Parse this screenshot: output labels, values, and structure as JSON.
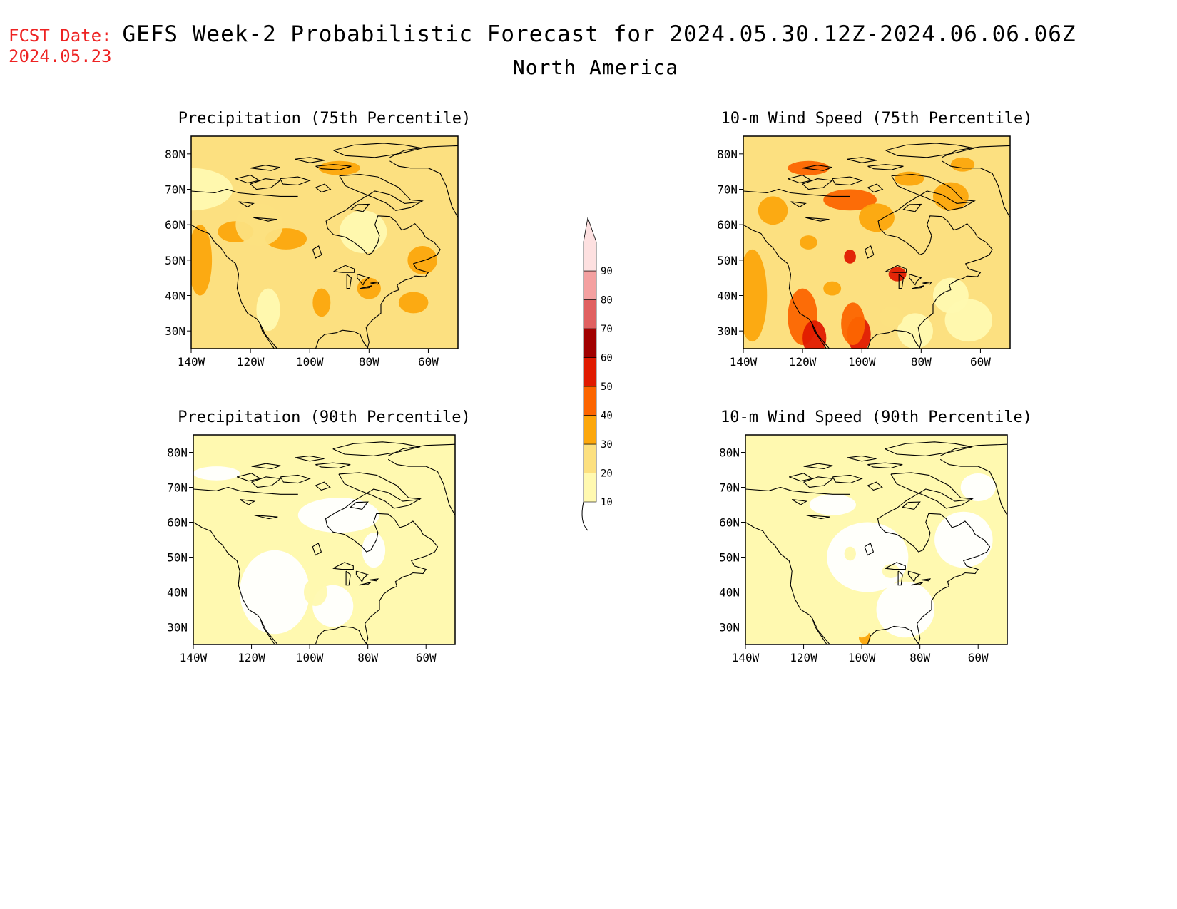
{
  "header": {
    "fcst_label": "FCST Date:",
    "fcst_date": "2024.05.23",
    "title": "GEFS Week-2 Probabilistic Forecast for 2024.05.30.12Z-2024.06.06.06Z",
    "region": "North America"
  },
  "axes": {
    "lon_ticks": [
      "140W",
      "120W",
      "100W",
      "80W",
      "60W"
    ],
    "lat_ticks": [
      "80N",
      "70N",
      "60N",
      "50N",
      "40N",
      "30N"
    ]
  },
  "panels": [
    {
      "title": "Precipitation (75th Percentile)",
      "level": 2
    },
    {
      "title": "10-m Wind Speed (75th Percentile)",
      "level": 3
    },
    {
      "title": "Precipitation (90th Percentile)",
      "level": 1
    },
    {
      "title": "10-m Wind Speed (90th Percentile)",
      "level": 1
    }
  ],
  "colorbar": {
    "labels": [
      "10",
      "20",
      "30",
      "40",
      "50",
      "60",
      "70",
      "80",
      "90"
    ],
    "colors": [
      "#fff9b0",
      "#fce080",
      "#fca70c",
      "#fc6500",
      "#e01a00",
      "#a10000",
      "#e06060",
      "#f4a0a0",
      "#fde0e0"
    ]
  }
}
